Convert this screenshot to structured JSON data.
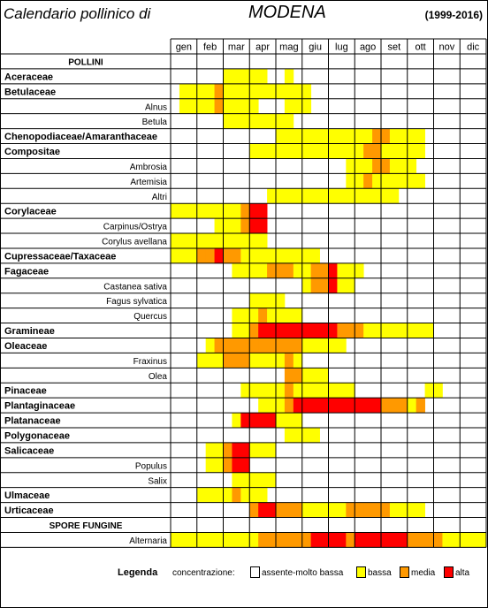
{
  "header": {
    "title_left": "Calendario pollinico di",
    "title_city": "MODENA",
    "years": "(1999-2016)"
  },
  "legend": {
    "title": "Legenda",
    "prefix": "concentrazione:",
    "levels": [
      {
        "label": "assente-molto bassa",
        "color": "#FFFFFF"
      },
      {
        "label": "bassa",
        "color": "#FFFF00"
      },
      {
        "label": "media",
        "color": "#FF9900"
      },
      {
        "label": "alta",
        "color": "#FF0000"
      }
    ]
  },
  "chart_data": {
    "type": "heatmap",
    "months": [
      "gen",
      "feb",
      "mar",
      "apr",
      "mag",
      "giu",
      "lug",
      "ago",
      "set",
      "ott",
      "nov",
      "dic"
    ],
    "value_encoding": "concentration level per third of month: 0 = assente-molto bassa, 1 = bassa, 2 = media, 3 = alta",
    "colors": {
      "0": "#FFFFFF",
      "1": "#FFFF00",
      "2": "#FF9900",
      "3": "#FF0000"
    },
    "rows": [
      {
        "label": "POLLINI",
        "kind": "section"
      },
      {
        "label": "Aceraceae",
        "kind": "family",
        "values": [
          0,
          0,
          0,
          0,
          0,
          0,
          1,
          1,
          1,
          1,
          1,
          0,
          0,
          1,
          0,
          0,
          0,
          0,
          0,
          0,
          0,
          0,
          0,
          0,
          0,
          0,
          0,
          0,
          0,
          0,
          0,
          0,
          0,
          0,
          0,
          0
        ]
      },
      {
        "label": "Betulaceae",
        "kind": "family",
        "values": [
          0,
          1,
          1,
          1,
          1,
          2,
          1,
          1,
          1,
          1,
          1,
          1,
          1,
          1,
          1,
          1,
          0,
          0,
          0,
          0,
          0,
          0,
          0,
          0,
          0,
          0,
          0,
          0,
          0,
          0,
          0,
          0,
          0,
          0,
          0,
          0
        ]
      },
      {
        "label": "Alnus",
        "kind": "species",
        "values": [
          0,
          1,
          1,
          1,
          1,
          2,
          1,
          1,
          1,
          1,
          0,
          0,
          0,
          1,
          1,
          1,
          0,
          0,
          0,
          0,
          0,
          0,
          0,
          0,
          0,
          0,
          0,
          0,
          0,
          0,
          0,
          0,
          0,
          0,
          0,
          0
        ]
      },
      {
        "label": "Betula",
        "kind": "species",
        "values": [
          0,
          0,
          0,
          0,
          0,
          0,
          1,
          1,
          1,
          1,
          1,
          1,
          1,
          1,
          0,
          0,
          0,
          0,
          0,
          0,
          0,
          0,
          0,
          0,
          0,
          0,
          0,
          0,
          0,
          0,
          0,
          0,
          0,
          0,
          0,
          0
        ]
      },
      {
        "label": "Chenopodiaceae/Amaranthaceae",
        "kind": "family",
        "values": [
          0,
          0,
          0,
          0,
          0,
          0,
          0,
          0,
          0,
          0,
          0,
          0,
          1,
          1,
          1,
          1,
          1,
          1,
          1,
          1,
          1,
          1,
          1,
          2,
          2,
          1,
          1,
          1,
          1,
          0,
          0,
          0,
          0,
          0,
          0,
          0
        ]
      },
      {
        "label": "Compositae",
        "kind": "family",
        "values": [
          0,
          0,
          0,
          0,
          0,
          0,
          0,
          0,
          0,
          1,
          1,
          1,
          1,
          1,
          1,
          1,
          1,
          1,
          1,
          1,
          1,
          1,
          2,
          2,
          1,
          1,
          1,
          1,
          1,
          0,
          0,
          0,
          0,
          0,
          0,
          0
        ]
      },
      {
        "label": "Ambrosia",
        "kind": "species",
        "values": [
          0,
          0,
          0,
          0,
          0,
          0,
          0,
          0,
          0,
          0,
          0,
          0,
          0,
          0,
          0,
          0,
          0,
          0,
          0,
          0,
          1,
          1,
          1,
          2,
          2,
          1,
          1,
          1,
          0,
          0,
          0,
          0,
          0,
          0,
          0,
          0
        ]
      },
      {
        "label": "Artemisia",
        "kind": "species",
        "values": [
          0,
          0,
          0,
          0,
          0,
          0,
          0,
          0,
          0,
          0,
          0,
          0,
          0,
          0,
          0,
          0,
          0,
          0,
          0,
          0,
          1,
          1,
          2,
          1,
          1,
          1,
          1,
          1,
          1,
          0,
          0,
          0,
          0,
          0,
          0,
          0
        ]
      },
      {
        "label": "Altri",
        "kind": "species",
        "values": [
          0,
          0,
          0,
          0,
          0,
          0,
          0,
          0,
          0,
          0,
          0,
          1,
          1,
          1,
          1,
          1,
          1,
          1,
          1,
          1,
          1,
          1,
          1,
          1,
          1,
          1,
          0,
          0,
          0,
          0,
          0,
          0,
          0,
          0,
          0,
          0
        ]
      },
      {
        "label": "Corylaceae",
        "kind": "family",
        "values": [
          1,
          1,
          1,
          1,
          1,
          1,
          1,
          1,
          2,
          3,
          3,
          0,
          0,
          0,
          0,
          0,
          0,
          0,
          0,
          0,
          0,
          0,
          0,
          0,
          0,
          0,
          0,
          0,
          0,
          0,
          0,
          0,
          0,
          0,
          0,
          0
        ]
      },
      {
        "label": "Carpinus/Ostrya",
        "kind": "species",
        "values": [
          0,
          0,
          0,
          0,
          0,
          1,
          1,
          1,
          2,
          3,
          3,
          0,
          0,
          0,
          0,
          0,
          0,
          0,
          0,
          0,
          0,
          0,
          0,
          0,
          0,
          0,
          0,
          0,
          0,
          0,
          0,
          0,
          0,
          0,
          0,
          0
        ]
      },
      {
        "label": "Corylus avellana",
        "kind": "species",
        "values": [
          1,
          1,
          1,
          1,
          1,
          1,
          1,
          1,
          1,
          1,
          1,
          0,
          0,
          0,
          0,
          0,
          0,
          0,
          0,
          0,
          0,
          0,
          0,
          0,
          0,
          0,
          0,
          0,
          0,
          0,
          0,
          0,
          0,
          0,
          0,
          0
        ]
      },
      {
        "label": "Cupressaceae/Taxaceae",
        "kind": "family",
        "values": [
          1,
          1,
          1,
          2,
          2,
          3,
          2,
          2,
          1,
          1,
          1,
          1,
          1,
          1,
          1,
          1,
          1,
          0,
          0,
          0,
          0,
          0,
          0,
          0,
          0,
          0,
          0,
          0,
          0,
          0,
          0,
          0,
          0,
          0,
          0,
          0
        ]
      },
      {
        "label": "Fagaceae",
        "kind": "family",
        "values": [
          0,
          0,
          0,
          0,
          0,
          0,
          0,
          1,
          1,
          1,
          1,
          2,
          2,
          2,
          1,
          1,
          2,
          2,
          3,
          1,
          1,
          1,
          0,
          0,
          0,
          0,
          0,
          0,
          0,
          0,
          0,
          0,
          0,
          0,
          0,
          0
        ]
      },
      {
        "label": "Castanea sativa",
        "kind": "species",
        "values": [
          0,
          0,
          0,
          0,
          0,
          0,
          0,
          0,
          0,
          0,
          0,
          0,
          0,
          0,
          0,
          1,
          2,
          2,
          3,
          1,
          1,
          0,
          0,
          0,
          0,
          0,
          0,
          0,
          0,
          0,
          0,
          0,
          0,
          0,
          0,
          0
        ]
      },
      {
        "label": "Fagus sylvatica",
        "kind": "species",
        "values": [
          0,
          0,
          0,
          0,
          0,
          0,
          0,
          0,
          0,
          1,
          1,
          1,
          1,
          0,
          0,
          0,
          0,
          0,
          0,
          0,
          0,
          0,
          0,
          0,
          0,
          0,
          0,
          0,
          0,
          0,
          0,
          0,
          0,
          0,
          0,
          0
        ]
      },
      {
        "label": "Quercus",
        "kind": "species",
        "values": [
          0,
          0,
          0,
          0,
          0,
          0,
          0,
          1,
          1,
          1,
          2,
          1,
          1,
          1,
          1,
          0,
          0,
          0,
          0,
          0,
          0,
          0,
          0,
          0,
          0,
          0,
          0,
          0,
          0,
          0,
          0,
          0,
          0,
          0,
          0,
          0
        ]
      },
      {
        "label": "Gramineae",
        "kind": "family",
        "values": [
          0,
          0,
          0,
          0,
          0,
          0,
          0,
          1,
          1,
          2,
          3,
          3,
          3,
          3,
          3,
          3,
          3,
          3,
          3,
          2,
          2,
          2,
          1,
          1,
          1,
          1,
          1,
          1,
          1,
          1,
          0,
          0,
          0,
          0,
          0,
          0
        ]
      },
      {
        "label": "Oleaceae",
        "kind": "family",
        "values": [
          0,
          0,
          0,
          0,
          1,
          2,
          2,
          2,
          2,
          2,
          2,
          2,
          2,
          2,
          2,
          1,
          1,
          1,
          1,
          1,
          0,
          0,
          0,
          0,
          0,
          0,
          0,
          0,
          0,
          0,
          0,
          0,
          0,
          0,
          0,
          0
        ]
      },
      {
        "label": "Fraxinus",
        "kind": "species",
        "values": [
          0,
          0,
          0,
          1,
          1,
          1,
          2,
          2,
          2,
          1,
          1,
          1,
          1,
          2,
          1,
          0,
          0,
          0,
          0,
          0,
          0,
          0,
          0,
          0,
          0,
          0,
          0,
          0,
          0,
          0,
          0,
          0,
          0,
          0,
          0,
          0
        ]
      },
      {
        "label": "Olea",
        "kind": "species",
        "values": [
          0,
          0,
          0,
          0,
          0,
          0,
          0,
          0,
          0,
          0,
          0,
          0,
          0,
          2,
          2,
          1,
          1,
          1,
          0,
          0,
          0,
          0,
          0,
          0,
          0,
          0,
          0,
          0,
          0,
          0,
          0,
          0,
          0,
          0,
          0,
          0
        ]
      },
      {
        "label": "Pinaceae",
        "kind": "family",
        "values": [
          0,
          0,
          0,
          0,
          0,
          0,
          0,
          0,
          1,
          1,
          1,
          1,
          1,
          2,
          1,
          1,
          1,
          1,
          1,
          1,
          1,
          0,
          0,
          0,
          0,
          0,
          0,
          0,
          0,
          1,
          1,
          0,
          0,
          0,
          0,
          0
        ]
      },
      {
        "label": "Plantaginaceae",
        "kind": "family",
        "values": [
          0,
          0,
          0,
          0,
          0,
          0,
          0,
          0,
          0,
          0,
          1,
          1,
          1,
          2,
          3,
          3,
          3,
          3,
          3,
          3,
          3,
          3,
          3,
          3,
          2,
          2,
          2,
          1,
          2,
          0,
          0,
          0,
          0,
          0,
          0,
          0
        ]
      },
      {
        "label": "Platanaceae",
        "kind": "family",
        "values": [
          0,
          0,
          0,
          0,
          0,
          0,
          0,
          1,
          3,
          3,
          3,
          3,
          1,
          1,
          1,
          0,
          0,
          0,
          0,
          0,
          0,
          0,
          0,
          0,
          0,
          0,
          0,
          0,
          0,
          0,
          0,
          0,
          0,
          0,
          0,
          0
        ]
      },
      {
        "label": "Polygonaceae",
        "kind": "family",
        "values": [
          0,
          0,
          0,
          0,
          0,
          0,
          0,
          0,
          0,
          0,
          0,
          0,
          0,
          1,
          1,
          1,
          1,
          0,
          0,
          0,
          0,
          0,
          0,
          0,
          0,
          0,
          0,
          0,
          0,
          0,
          0,
          0,
          0,
          0,
          0,
          0
        ]
      },
      {
        "label": "Salicaceae",
        "kind": "family",
        "values": [
          0,
          0,
          0,
          0,
          1,
          1,
          2,
          3,
          3,
          1,
          1,
          1,
          0,
          0,
          0,
          0,
          0,
          0,
          0,
          0,
          0,
          0,
          0,
          0,
          0,
          0,
          0,
          0,
          0,
          0,
          0,
          0,
          0,
          0,
          0,
          0
        ]
      },
      {
        "label": "Populus",
        "kind": "species",
        "values": [
          0,
          0,
          0,
          0,
          1,
          1,
          2,
          3,
          3,
          0,
          0,
          0,
          0,
          0,
          0,
          0,
          0,
          0,
          0,
          0,
          0,
          0,
          0,
          0,
          0,
          0,
          0,
          0,
          0,
          0,
          0,
          0,
          0,
          0,
          0,
          0
        ]
      },
      {
        "label": "Salix",
        "kind": "species",
        "values": [
          0,
          0,
          0,
          0,
          0,
          0,
          0,
          1,
          1,
          1,
          1,
          1,
          0,
          0,
          0,
          0,
          0,
          0,
          0,
          0,
          0,
          0,
          0,
          0,
          0,
          0,
          0,
          0,
          0,
          0,
          0,
          0,
          0,
          0,
          0,
          0
        ]
      },
      {
        "label": "Ulmaceae",
        "kind": "family",
        "values": [
          0,
          0,
          0,
          1,
          1,
          1,
          1,
          2,
          1,
          1,
          1,
          0,
          0,
          0,
          0,
          0,
          0,
          0,
          0,
          0,
          0,
          0,
          0,
          0,
          0,
          0,
          0,
          0,
          0,
          0,
          0,
          0,
          0,
          0,
          0,
          0
        ]
      },
      {
        "label": "Urticaceae",
        "kind": "family",
        "values": [
          0,
          0,
          0,
          0,
          0,
          0,
          0,
          0,
          0,
          2,
          3,
          3,
          2,
          2,
          2,
          1,
          1,
          1,
          1,
          1,
          2,
          2,
          2,
          2,
          2,
          1,
          1,
          1,
          1,
          0,
          0,
          0,
          0,
          0,
          0,
          0
        ]
      },
      {
        "label": "SPORE FUNGINE",
        "kind": "section"
      },
      {
        "label": "Alternaria",
        "kind": "species",
        "values": [
          1,
          1,
          1,
          1,
          1,
          1,
          1,
          1,
          1,
          1,
          2,
          2,
          2,
          2,
          2,
          2,
          3,
          3,
          3,
          3,
          2,
          3,
          3,
          3,
          3,
          3,
          3,
          2,
          2,
          2,
          2,
          1,
          1,
          1,
          1,
          1
        ]
      }
    ]
  }
}
